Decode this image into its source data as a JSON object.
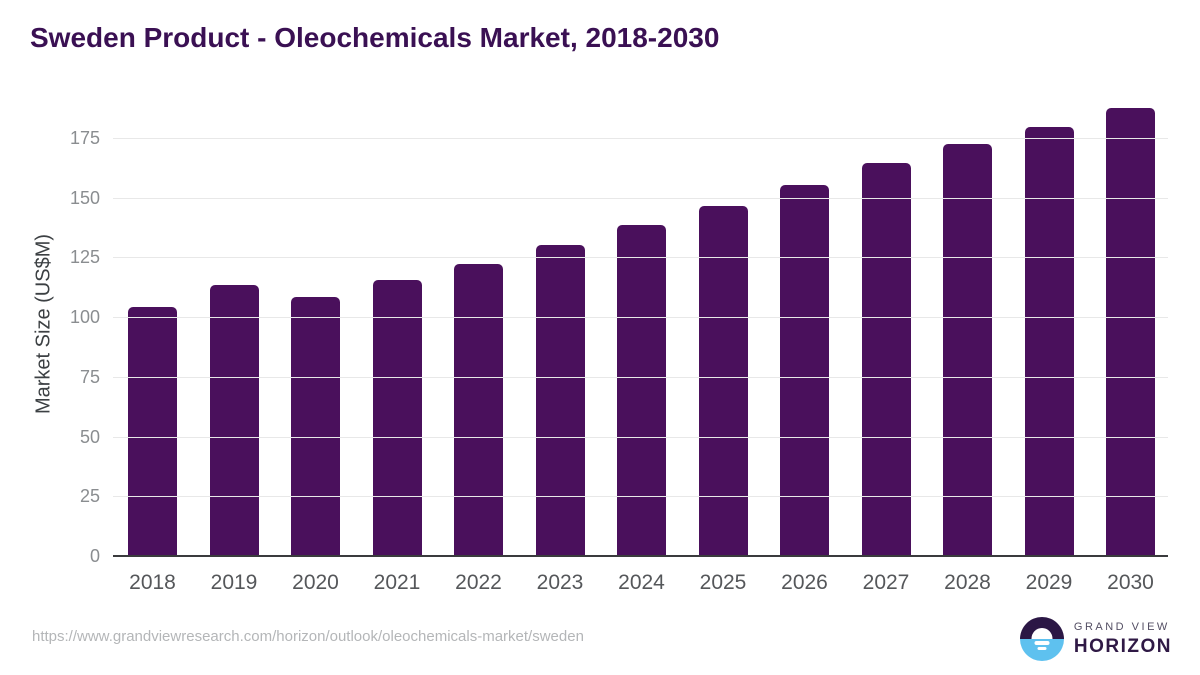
{
  "header": {
    "title": "Sweden Product - Oleochemicals Market, 2018-2030"
  },
  "chart_data": {
    "type": "bar",
    "title": "Sweden Product - Oleochemicals Market, 2018-2030",
    "categories": [
      "2018",
      "2019",
      "2020",
      "2021",
      "2022",
      "2023",
      "2024",
      "2025",
      "2026",
      "2027",
      "2028",
      "2029",
      "2030"
    ],
    "values": [
      104,
      113,
      108,
      115,
      122,
      130,
      138,
      146,
      155,
      164,
      172,
      179,
      187
    ],
    "xlabel": "",
    "ylabel": "Market Size (US$M)",
    "ylim": [
      0,
      190
    ],
    "yticks": [
      0,
      25,
      50,
      75,
      100,
      125,
      150,
      175
    ],
    "grid": true,
    "legend": false,
    "bar_color": "#4a105c",
    "gridline_color": "#e8e8e8",
    "axis_line_color": "#3a3b3d",
    "y_tick_color": "#8a8d90",
    "x_tick_color": "#55575a",
    "title_color": "#3a1053"
  },
  "footer": {
    "source_url": "https://www.grandviewresearch.com/horizon/outlook/oleochemicals-market/sweden",
    "logo": {
      "line1": "GRAND VIEW",
      "line2": "HORIZON",
      "icon": "horizon-sun-icon",
      "icon_top_color": "#2b1745",
      "icon_bottom_color": "#5ec1ef"
    }
  }
}
